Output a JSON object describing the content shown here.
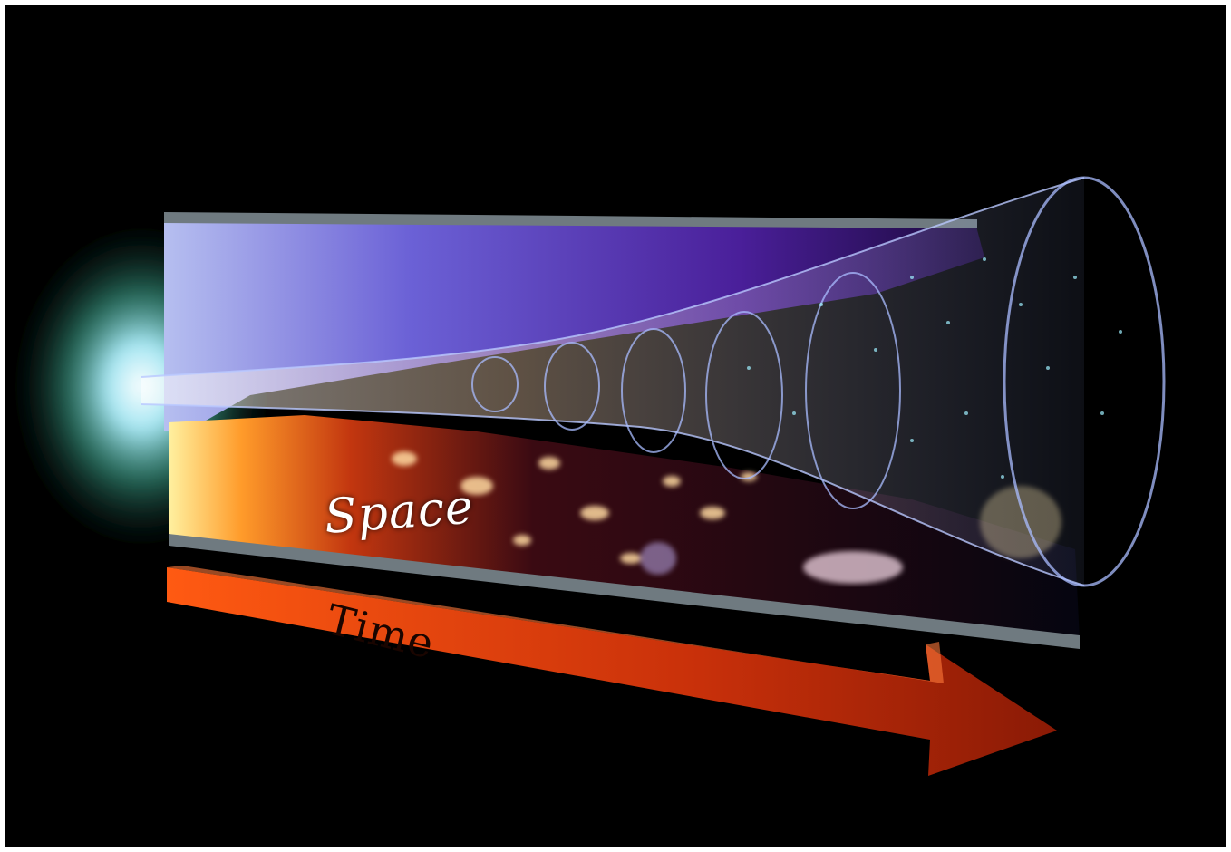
{
  "labels": {
    "space": "Space",
    "time": "Time"
  },
  "colors": {
    "background": "#000000",
    "frame": "#ffffff",
    "arrow": "#c43a0c",
    "cone_outline": "#9fb6ff",
    "upper_panel": "#5a3fb0",
    "lower_panel": "#ff8a2a"
  },
  "icons": [
    "time-arrow-icon",
    "expanding-cone-icon"
  ]
}
